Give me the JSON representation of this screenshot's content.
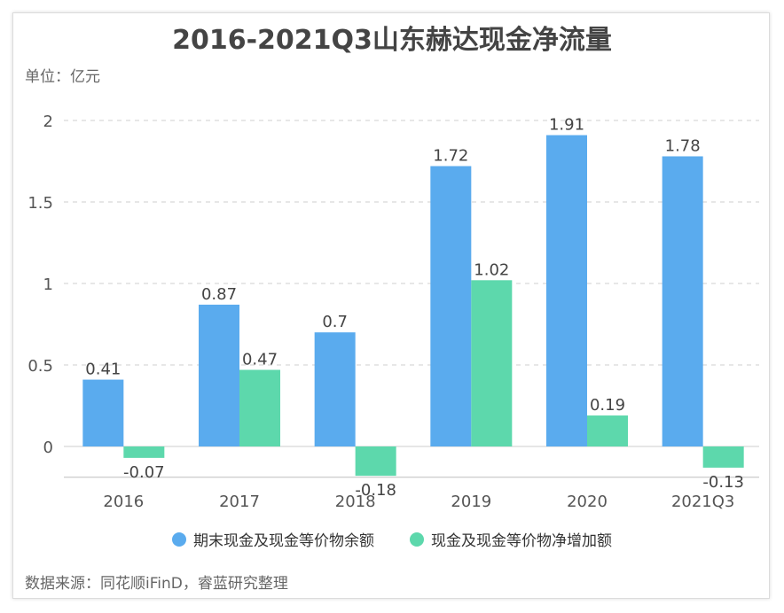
{
  "chart_data": {
    "type": "bar",
    "title": "2016-2021Q3山东赫达现金净流量",
    "unit_label": "单位：亿元",
    "source": "数据来源：同花顺iFinD，睿蓝研究整理",
    "categories": [
      "2016",
      "2017",
      "2018",
      "2019",
      "2020",
      "2021Q3"
    ],
    "series": [
      {
        "name": "期末现金及现金等价物余额",
        "color": "#5aabee",
        "values": [
          0.41,
          0.87,
          0.7,
          1.72,
          1.91,
          1.78
        ]
      },
      {
        "name": "现金及现金等价物净增加额",
        "color": "#5dd8ac",
        "values": [
          -0.07,
          0.47,
          -0.18,
          1.02,
          0.19,
          -0.13
        ]
      }
    ],
    "y_ticks": [
      "0",
      "0.5",
      "1",
      "1.5",
      "2"
    ],
    "ylim": [
      -0.2,
      2.05
    ],
    "grid": true,
    "legend_position": "bottom"
  }
}
